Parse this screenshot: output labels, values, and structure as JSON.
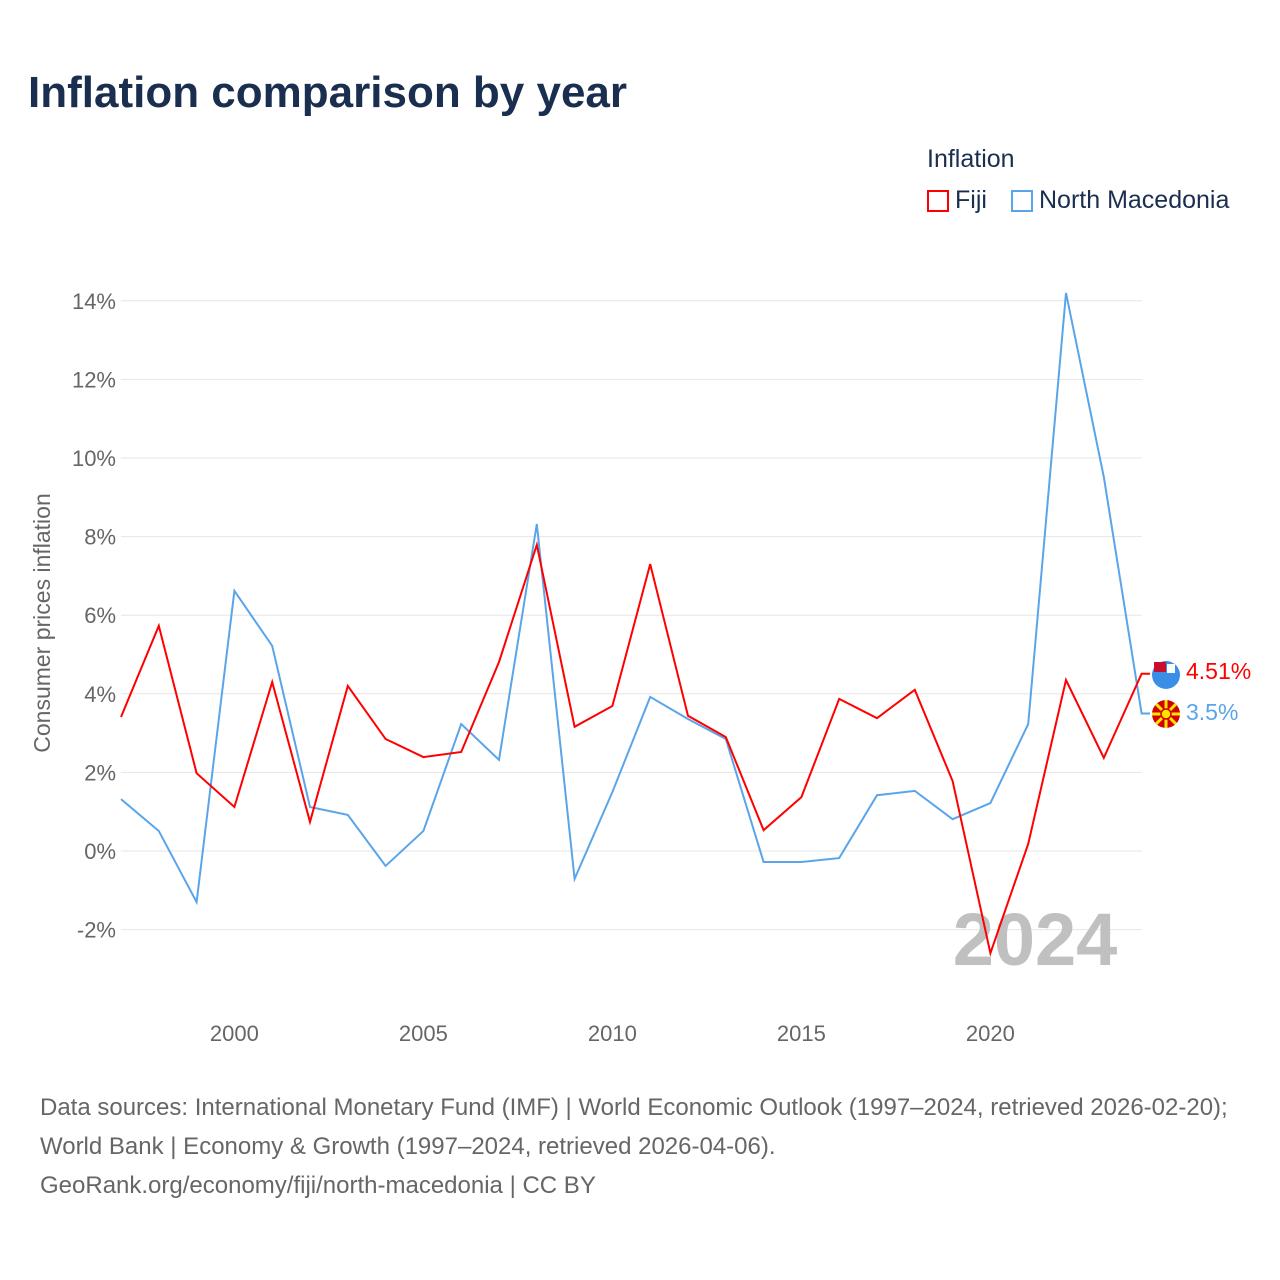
{
  "title": "Inflation comparison by year",
  "legend": {
    "title": "Inflation",
    "items": [
      "Fiji",
      "North Macedonia"
    ]
  },
  "watermark_year": "2024",
  "footer": {
    "line1": "Data sources: International Monetary Fund (IMF) | World Economic Outlook (1997–2024, retrieved 2026-02-20); World Bank | Economy & Growth (1997–2024, retrieved 2026-04-06).",
    "line2": "GeoRank.org/economy/fiji/north-macedonia | CC BY"
  },
  "chart_data": {
    "type": "line",
    "title": "Inflation comparison by year",
    "ylabel": "Consumer prices inflation",
    "xlabel": "",
    "ylim": [
      -2,
      14
    ],
    "yticks": [
      -2,
      0,
      2,
      4,
      6,
      8,
      10,
      12,
      14
    ],
    "ytick_labels": [
      "-2%",
      "0%",
      "2%",
      "4%",
      "6%",
      "8%",
      "10%",
      "12%",
      "14%"
    ],
    "xticks": [
      2000,
      2005,
      2010,
      2015,
      2020
    ],
    "x": [
      1997,
      1998,
      1999,
      2000,
      2001,
      2002,
      2003,
      2004,
      2005,
      2006,
      2007,
      2008,
      2009,
      2010,
      2011,
      2012,
      2013,
      2014,
      2015,
      2016,
      2017,
      2018,
      2019,
      2020,
      2021,
      2022,
      2023,
      2024
    ],
    "series": [
      {
        "name": "Fiji",
        "color": "#ff0000",
        "end_label": "4.51%",
        "values": [
          3.41,
          5.73,
          1.98,
          1.12,
          4.3,
          0.74,
          4.2,
          2.85,
          2.39,
          2.52,
          4.81,
          7.79,
          3.16,
          3.69,
          7.3,
          3.44,
          2.9,
          0.53,
          1.37,
          3.87,
          3.38,
          4.1,
          1.78,
          -2.6,
          0.18,
          4.35,
          2.37,
          4.51
        ]
      },
      {
        "name": "North Macedonia",
        "color": "#5aa5ea",
        "end_label": "3.5%",
        "values": [
          1.32,
          0.51,
          -1.3,
          6.62,
          5.22,
          1.12,
          0.92,
          -0.38,
          0.51,
          3.23,
          2.32,
          8.32,
          -0.71,
          1.5,
          3.92,
          3.36,
          2.85,
          -0.28,
          -0.28,
          -0.18,
          1.42,
          1.53,
          0.81,
          1.22,
          3.23,
          14.2,
          9.52,
          3.5
        ]
      }
    ]
  }
}
